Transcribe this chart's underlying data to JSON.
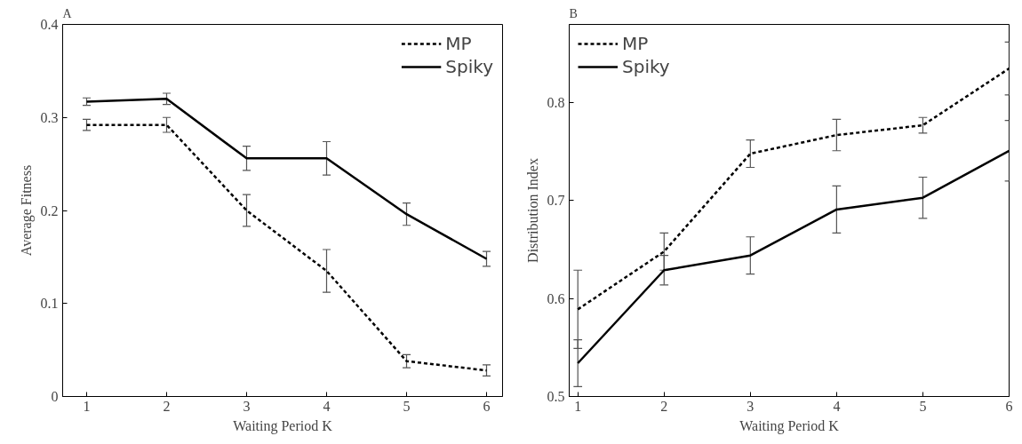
{
  "chart_data": [
    {
      "type": "line",
      "title": "A",
      "xlabel": "Waiting Period K",
      "ylabel": "Average Fitness",
      "x": [
        1,
        2,
        3,
        4,
        5,
        6
      ],
      "xlim": [
        0.7,
        6.2
      ],
      "xticks": [
        1,
        2,
        3,
        4,
        5,
        6
      ],
      "ylim": [
        0,
        0.4
      ],
      "yticks": [
        0,
        0.1,
        0.2,
        0.3,
        0.4
      ],
      "grid": false,
      "legend": "top right",
      "series": [
        {
          "name": "MP",
          "color": "#000000",
          "line_style": "dashed",
          "values": [
            0.292,
            0.292,
            0.2,
            0.135,
            0.038,
            0.028
          ],
          "errors": [
            0.006,
            0.008,
            0.017,
            0.023,
            0.007,
            0.006
          ]
        },
        {
          "name": "Spiky",
          "color": "#000000",
          "line_style": "solid",
          "values": [
            0.317,
            0.32,
            0.256,
            0.256,
            0.196,
            0.148
          ],
          "errors": [
            0.004,
            0.006,
            0.013,
            0.018,
            0.012,
            0.008
          ]
        }
      ]
    },
    {
      "type": "line",
      "title": "B",
      "xlabel": "Waiting Period K",
      "ylabel": "Distribution Index",
      "x": [
        1,
        2,
        3,
        4,
        5,
        6
      ],
      "xlim": [
        0.9,
        6
      ],
      "xticks": [
        1,
        2,
        3,
        4,
        5,
        6
      ],
      "ylim": [
        0.5,
        0.88
      ],
      "yticks": [
        0.5,
        0.6,
        0.7,
        0.8
      ],
      "grid": false,
      "legend": "top left",
      "series": [
        {
          "name": "MP",
          "color": "#000000",
          "line_style": "dashed",
          "values": [
            0.589,
            0.648,
            0.748,
            0.767,
            0.777,
            0.835
          ],
          "errors": [
            0.04,
            0.019,
            0.014,
            0.016,
            0.008,
            0.027
          ]
        },
        {
          "name": "Spiky",
          "color": "#000000",
          "line_style": "solid",
          "values": [
            0.534,
            0.629,
            0.644,
            0.691,
            0.703,
            0.751
          ],
          "errors": [
            0.024,
            0.015,
            0.019,
            0.024,
            0.021,
            0.031
          ]
        }
      ]
    }
  ]
}
